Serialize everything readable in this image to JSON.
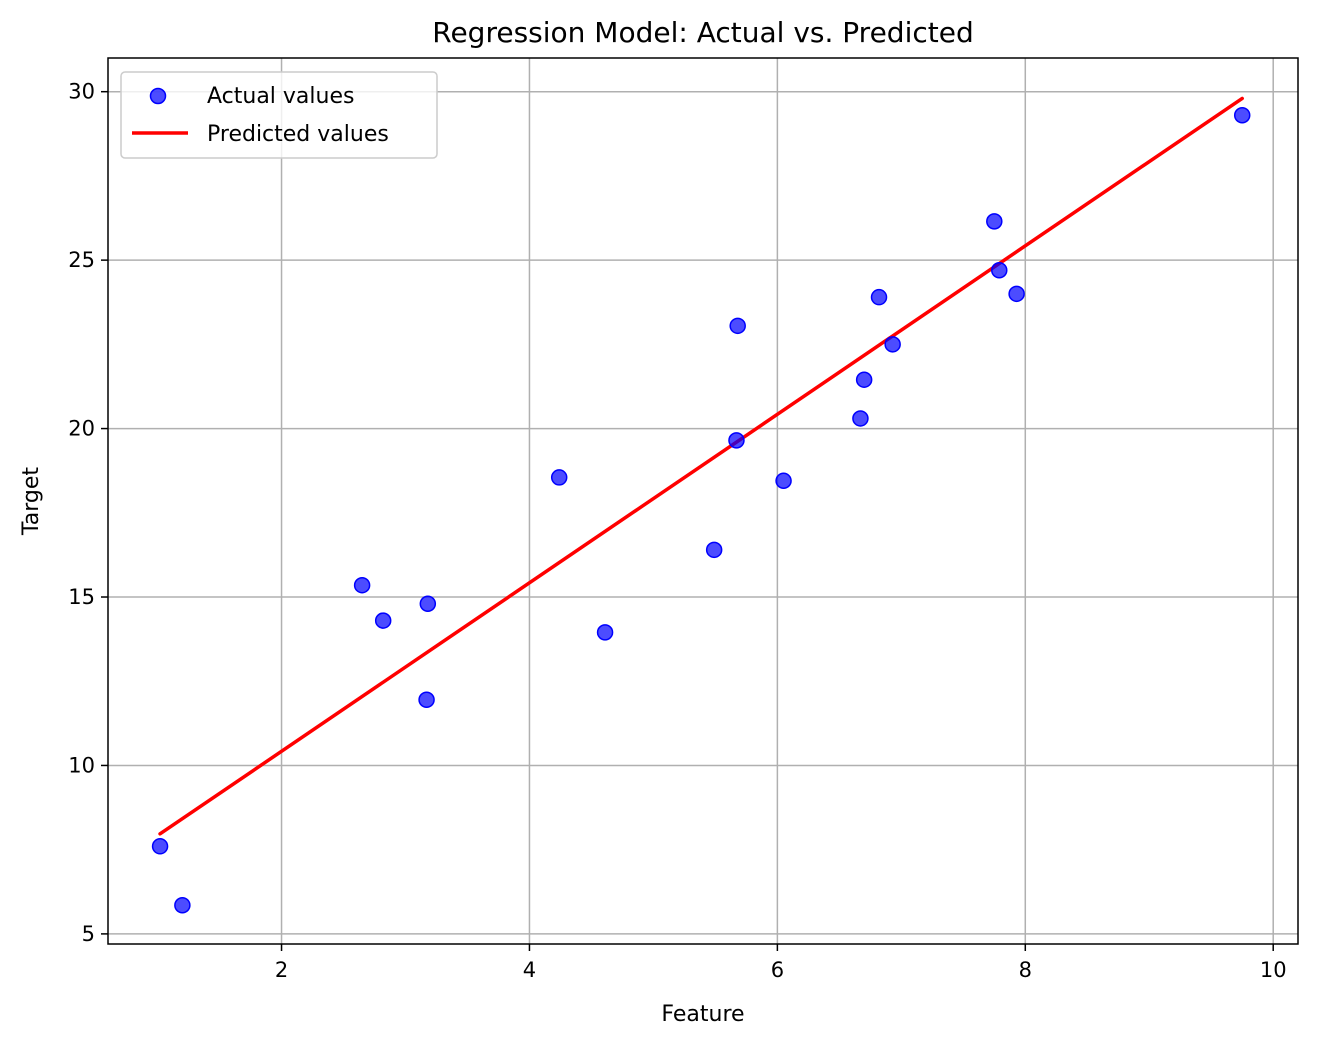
{
  "chart_data": {
    "type": "scatter",
    "title": "Regression Model: Actual vs. Predicted",
    "xlabel": "Feature",
    "ylabel": "Target",
    "xlim": [
      0.6,
      10.2
    ],
    "ylim": [
      4.7,
      31.0
    ],
    "xticks": [
      2,
      4,
      6,
      8,
      10
    ],
    "yticks": [
      5,
      10,
      15,
      20,
      25,
      30
    ],
    "grid": true,
    "legend_position": "upper-left",
    "series": [
      {
        "name": "Actual values",
        "kind": "scatter",
        "color": "#0000ff",
        "points": [
          [
            1.02,
            7.6
          ],
          [
            1.2,
            5.85
          ],
          [
            2.65,
            15.35
          ],
          [
            2.82,
            14.3
          ],
          [
            3.17,
            11.95
          ],
          [
            3.18,
            14.8
          ],
          [
            4.24,
            18.55
          ],
          [
            4.61,
            13.95
          ],
          [
            5.49,
            16.4
          ],
          [
            5.67,
            19.65
          ],
          [
            5.68,
            23.05
          ],
          [
            6.05,
            18.45
          ],
          [
            6.67,
            20.3
          ],
          [
            6.7,
            21.45
          ],
          [
            6.82,
            23.9
          ],
          [
            6.93,
            22.5
          ],
          [
            7.75,
            26.15
          ],
          [
            7.79,
            24.7
          ],
          [
            7.93,
            24.0
          ],
          [
            9.75,
            29.3
          ]
        ]
      },
      {
        "name": "Predicted values",
        "kind": "line",
        "color": "#ff0000",
        "points": [
          [
            1.02,
            7.97
          ],
          [
            9.75,
            29.8
          ]
        ]
      }
    ]
  }
}
